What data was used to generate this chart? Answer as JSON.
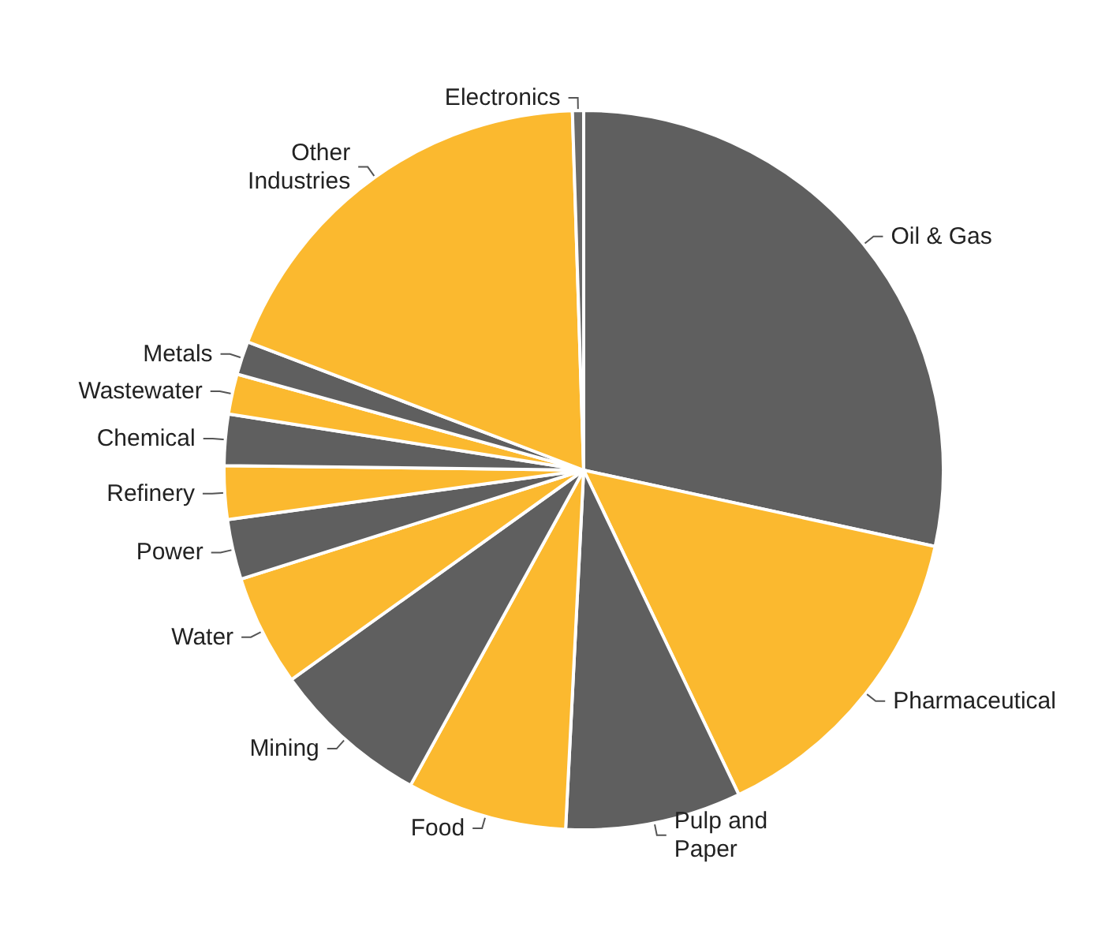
{
  "chart_data": {
    "type": "pie",
    "categories": [
      "Oil & Gas",
      "Pharmaceutical",
      "Pulp and Paper",
      "Food",
      "Mining",
      "Water",
      "Power",
      "Refinery",
      "Chemical",
      "Wastewater",
      "Metals",
      "Other Industries",
      "Electronics"
    ],
    "values": [
      28.4,
      14.5,
      7.9,
      7.2,
      7.1,
      5,
      2.7,
      2.4,
      2.3,
      1.8,
      1.5,
      18.7,
      0.5
    ],
    "colors": [
      "#5f5f5f",
      "#fbb92f",
      "#5f5f5f",
      "#fbb92f",
      "#5f5f5f",
      "#fbb92f",
      "#5f5f5f",
      "#fbb92f",
      "#5f5f5f",
      "#fbb92f",
      "#5f5f5f",
      "#fbb92f",
      "#6a6a6a"
    ],
    "legend": false
  }
}
